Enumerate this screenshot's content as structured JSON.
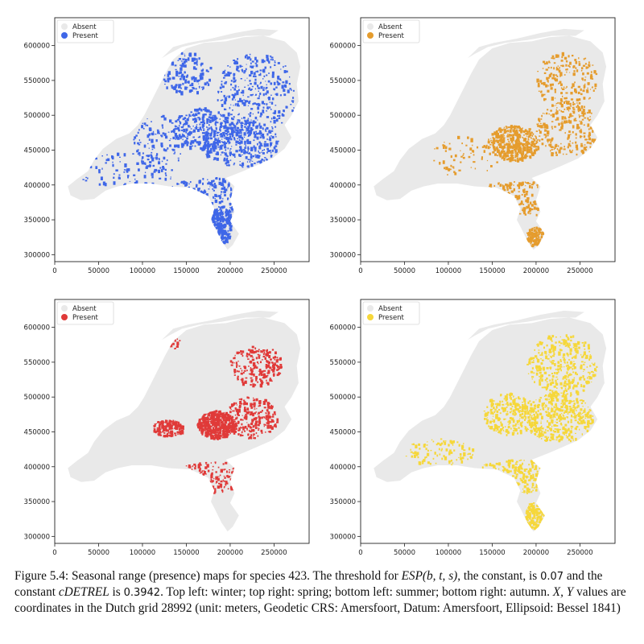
{
  "legend": {
    "absent_label": "Absent",
    "present_label": "Present",
    "absent_color": "#e9e9e9"
  },
  "axes": {
    "x_ticks": [
      0,
      50000,
      100000,
      150000,
      200000,
      250000
    ],
    "y_ticks": [
      300000,
      350000,
      400000,
      450000,
      500000,
      550000,
      600000
    ],
    "x_range": [
      0,
      290000
    ],
    "y_range": [
      290000,
      640000
    ]
  },
  "panels": [
    {
      "id": "winter",
      "season": "winter",
      "present_color": "#3f67e8"
    },
    {
      "id": "spring",
      "season": "spring",
      "present_color": "#e59c2d"
    },
    {
      "id": "summer",
      "season": "summer",
      "present_color": "#e03a39"
    },
    {
      "id": "autumn",
      "season": "autumn",
      "present_color": "#f6d73a"
    }
  ],
  "caption": {
    "part1": "Figure 5.4: Seasonal range (presence) maps for species 423.  The threshold for ",
    "esp": "ESP(b, t, s)",
    "part2": ", the constant, is ",
    "esp_value": "0.07",
    "part3": " and the constant ",
    "cdetrel": "cDETREL",
    "part4": " is ",
    "cdetrel_value": "0.3942",
    "part5": ". Top left: winter; top right: spring; bottom left: summer; bottom right: autumn. ",
    "xy": "X, Y",
    "part6": " values are coordinates in the Dutch grid 28992 (unit: meters, Geodetic CRS: Amersfoort, Datum: Amersfoort, Ellipsoid: Bessel 1841)"
  }
}
